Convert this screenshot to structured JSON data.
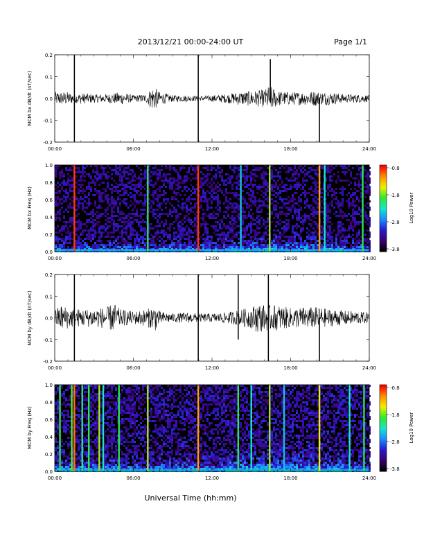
{
  "header": {
    "title": "2013/12/21   00:00-24:00 UT",
    "page": "Page 1/1"
  },
  "footer": {
    "xlabel": "Universal Time (hh:mm)"
  },
  "colors": {
    "trace": "#000000",
    "spectrogram_background": "#000000",
    "colorbar": [
      "#000000",
      "#3c0070",
      "#2a1ad0",
      "#1a8cff",
      "#17e6c8",
      "#30e830",
      "#f0f000",
      "#ff9000",
      "#ff0000"
    ]
  },
  "chart_data": [
    {
      "type": "line",
      "ylabel": "MCM bx dB/dt (nT/sec)",
      "x_range": [
        0,
        24
      ],
      "ylim": [
        -0.2,
        0.2
      ],
      "xticks": [
        "00:00",
        "06:00",
        "12:00",
        "18:00",
        "24:00"
      ],
      "yticks": [
        "-0.2",
        "-0.1",
        "0.0",
        "0.1",
        "0.2"
      ],
      "series": [
        {
          "x": [
            0.0,
            1.0,
            1.5,
            2.0,
            3.0,
            4.0,
            5.0,
            6.0,
            7.0,
            7.5,
            8.0,
            9.0,
            10.0,
            11.0,
            12.0,
            13.0,
            14.0,
            15.0,
            16.0,
            16.4,
            17.0,
            18.0,
            19.0,
            20.0,
            20.3,
            21.0,
            22.0,
            23.0,
            24.0
          ],
          "amplitude": [
            0.03,
            0.03,
            0.02,
            0.025,
            0.02,
            0.02,
            0.03,
            0.015,
            0.02,
            0.06,
            0.03,
            0.015,
            0.015,
            0.01,
            0.015,
            0.02,
            0.03,
            0.035,
            0.04,
            0.06,
            0.035,
            0.03,
            0.03,
            0.035,
            0.03,
            0.03,
            0.02,
            0.02,
            0.015
          ]
        }
      ],
      "spikes": [
        {
          "x": 1.5,
          "ymin": -0.2,
          "ymax": 0.2
        },
        {
          "x": 10.95,
          "ymin": -0.2,
          "ymax": 0.2
        },
        {
          "x": 16.45,
          "ymin": -0.02,
          "ymax": 0.18
        },
        {
          "x": 20.2,
          "ymin": -0.2,
          "ymax": 0.0
        }
      ]
    },
    {
      "type": "heatmap",
      "ylabel": "MCM bx Freq (Hz)",
      "colorbar_label": "Log10 Power",
      "colorbar_ticks": [
        "-0.8",
        "-1.8",
        "-2.8",
        "-3.8"
      ],
      "x_range": [
        0,
        24
      ],
      "ylim": [
        0.0,
        1.0
      ],
      "xticks": [
        "00:00",
        "06:00",
        "12:00",
        "18:00",
        "24:00"
      ],
      "yticks": [
        "0.0",
        "0.2",
        "0.4",
        "0.6",
        "0.8",
        "1.0"
      ],
      "vertical_bands": [
        {
          "x": 1.5,
          "level": 0.95
        },
        {
          "x": 7.1,
          "level": 0.6
        },
        {
          "x": 10.95,
          "level": 0.95
        },
        {
          "x": 14.2,
          "level": 0.45
        },
        {
          "x": 16.4,
          "level": 0.7
        },
        {
          "x": 20.2,
          "level": 0.85
        },
        {
          "x": 20.6,
          "level": 0.5
        },
        {
          "x": 23.5,
          "level": 0.6
        }
      ]
    },
    {
      "type": "line",
      "ylabel": "MCM by dB/dt (nT/sec)",
      "x_range": [
        0,
        24
      ],
      "ylim": [
        -0.2,
        0.2
      ],
      "xticks": [
        "00:00",
        "06:00",
        "12:00",
        "18:00",
        "24:00"
      ],
      "yticks": [
        "-0.2",
        "-0.1",
        "0.0",
        "0.1",
        "0.2"
      ],
      "series": [
        {
          "x": [
            0.0,
            0.5,
            1.0,
            2.0,
            3.0,
            4.0,
            4.5,
            5.0,
            6.0,
            7.0,
            7.7,
            8.0,
            9.0,
            10.0,
            11.0,
            12.0,
            13.0,
            14.0,
            15.0,
            15.5,
            16.0,
            17.0,
            18.0,
            19.0,
            20.0,
            21.0,
            22.0,
            23.0,
            24.0
          ],
          "amplitude": [
            0.04,
            0.06,
            0.05,
            0.04,
            0.045,
            0.05,
            0.07,
            0.04,
            0.03,
            0.04,
            0.06,
            0.03,
            0.02,
            0.025,
            0.02,
            0.02,
            0.025,
            0.035,
            0.05,
            0.07,
            0.06,
            0.06,
            0.045,
            0.05,
            0.05,
            0.04,
            0.035,
            0.03,
            0.025
          ]
        }
      ],
      "spikes": [
        {
          "x": 1.5,
          "ymin": -0.2,
          "ymax": 0.2
        },
        {
          "x": 10.95,
          "ymin": -0.2,
          "ymax": 0.2
        },
        {
          "x": 14.0,
          "ymin": -0.1,
          "ymax": 0.2
        },
        {
          "x": 16.3,
          "ymin": -0.2,
          "ymax": 0.2
        },
        {
          "x": 20.2,
          "ymin": -0.2,
          "ymax": 0.0
        }
      ]
    },
    {
      "type": "heatmap",
      "ylabel": "MCM by Freq (Hz)",
      "colorbar_label": "Log10 Power",
      "colorbar_ticks": [
        "-0.8",
        "-1.8",
        "-2.8",
        "-3.8"
      ],
      "x_range": [
        0,
        24
      ],
      "ylim": [
        0.0,
        1.0
      ],
      "xticks": [
        "00:00",
        "06:00",
        "12:00",
        "18:00",
        "24:00"
      ],
      "yticks": [
        "0.0",
        "0.2",
        "0.4",
        "0.6",
        "0.8",
        "1.0"
      ],
      "vertical_bands": [
        {
          "x": 0.4,
          "level": 0.6
        },
        {
          "x": 1.3,
          "level": 0.65
        },
        {
          "x": 1.5,
          "level": 0.9
        },
        {
          "x": 2.1,
          "level": 0.55
        },
        {
          "x": 2.6,
          "level": 0.6
        },
        {
          "x": 3.4,
          "level": 0.7
        },
        {
          "x": 3.7,
          "level": 0.5
        },
        {
          "x": 4.9,
          "level": 0.6
        },
        {
          "x": 7.1,
          "level": 0.7
        },
        {
          "x": 10.95,
          "level": 0.85
        },
        {
          "x": 14.0,
          "level": 0.6
        },
        {
          "x": 15.0,
          "level": 0.5
        },
        {
          "x": 16.4,
          "level": 0.7
        },
        {
          "x": 17.5,
          "level": 0.45
        },
        {
          "x": 20.2,
          "level": 0.75
        },
        {
          "x": 22.5,
          "level": 0.5
        },
        {
          "x": 23.6,
          "level": 0.6
        }
      ]
    }
  ]
}
